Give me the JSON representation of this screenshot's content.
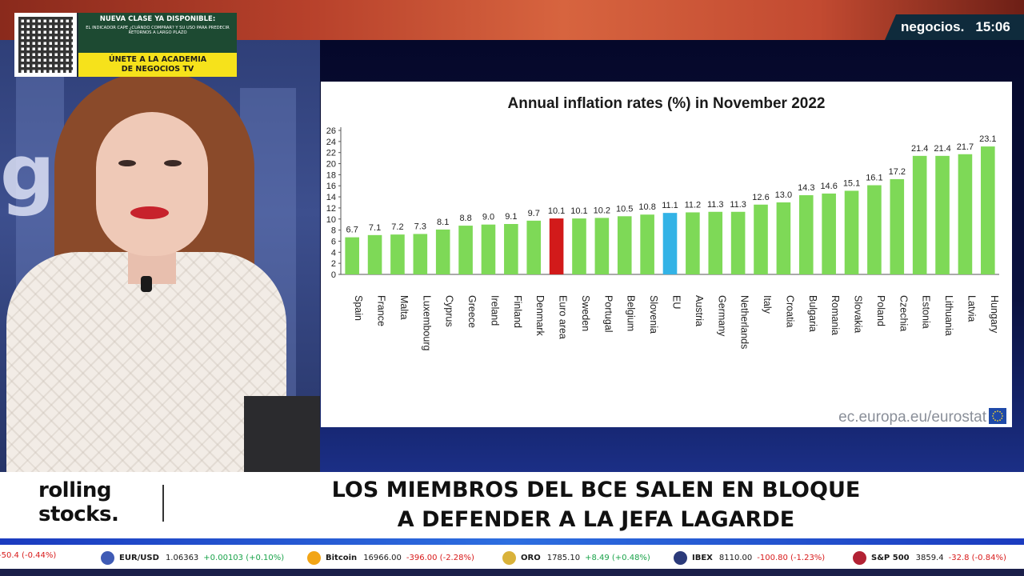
{
  "channel": {
    "logo": "negocios.",
    "time": "15:06"
  },
  "promo": {
    "headline": "NUEVA CLASE YA DISPONIBLE:",
    "subtext": "EL INDICADOR CAPE ¿CUÁNDO COMPRAR? Y SU USO PARA PREDECIR RETORNOS A LARGO PLAZO",
    "cta_line1": "ÚNETE A LA ACADEMIA",
    "cta_line2": "DE NEGOCIOS TV",
    "qr_icon": "qr-code-icon"
  },
  "studio_backdrop_text": "g   ck",
  "chart_data": {
    "type": "bar",
    "title": "Annual inflation rates (%) in November 2022",
    "categories": [
      "Spain",
      "France",
      "Malta",
      "Luxembourg",
      "Cyprus",
      "Greece",
      "Ireland",
      "Finland",
      "Denmark",
      "Euro area",
      "Sweden",
      "Portugal",
      "Belgium",
      "Slovenia",
      "EU",
      "Austria",
      "Germany",
      "Netherlands",
      "Italy",
      "Croatia",
      "Bulgaria",
      "Romania",
      "Slovakia",
      "Poland",
      "Czechia",
      "Estonia",
      "Lithuania",
      "Latvia",
      "Hungary"
    ],
    "values": [
      6.7,
      7.1,
      7.2,
      7.3,
      8.1,
      8.8,
      9.0,
      9.1,
      9.7,
      10.1,
      10.1,
      10.2,
      10.5,
      10.8,
      11.1,
      11.2,
      11.3,
      11.3,
      12.6,
      13.0,
      14.3,
      14.6,
      15.1,
      16.1,
      17.2,
      21.4,
      21.4,
      21.7,
      23.1
    ],
    "value_labels": [
      "6.7",
      "7.1",
      "7.2",
      "7.3",
      "8.1",
      "8.8",
      "9.0",
      "9.1",
      "9.7",
      "10.1",
      "10.1",
      "10.2",
      "10.5",
      "10.8",
      "11.1",
      "11.2",
      "11.3",
      "11.3",
      "12.6",
      "13.0",
      "14.3",
      "14.6",
      "15.1",
      "16.1",
      "17.2",
      "21.4",
      "21.4",
      "21.7",
      "23.1"
    ],
    "ylim": [
      0,
      26
    ],
    "yticks": [
      0,
      2,
      4,
      6,
      8,
      10,
      12,
      14,
      16,
      18,
      20,
      22,
      24,
      26
    ],
    "xlabel": "",
    "ylabel": "",
    "grid": false,
    "colors": {
      "default": "#7ed957",
      "Euro area": "#d21a1a",
      "EU": "#33b3e6"
    },
    "source": "ec.europa.eu/eurostat"
  },
  "lower_third": {
    "brand_line1": "rolling",
    "brand_line2": "stocks.",
    "headline_line1": "LOS MIEMBROS DEL BCE SALEN EN BLOQUE",
    "headline_line2": "A DEFENDER A LA JEFA LAGARDE"
  },
  "ticker": [
    {
      "name": "",
      "value": "",
      "change": "-50.4 (-0.44%)",
      "icon": "",
      "icon_color": "#c81e3a",
      "direction": "down"
    },
    {
      "name": "EUR/USD",
      "value": "1.06363",
      "change": "+0.00103 (+0.10%)",
      "icon": "euro-dollar-icon",
      "icon_color": "#3f5bb5",
      "direction": "up"
    },
    {
      "name": "Bitcoin",
      "value": "16966.00",
      "change": "-396.00 (-2.28%)",
      "icon": "bitcoin-icon",
      "icon_color": "#f2a516",
      "direction": "down"
    },
    {
      "name": "ORO",
      "value": "1785.10",
      "change": "+8.49 (+0.48%)",
      "icon": "gold-icon",
      "icon_color": "#d9b23a",
      "direction": "up"
    },
    {
      "name": "IBEX",
      "value": "8110.00",
      "change": "-100.80 (-1.23%)",
      "icon": "ibex-flag-icon",
      "icon_color": "#2b3a7a",
      "direction": "down"
    },
    {
      "name": "S&P 500",
      "value": "3859.4",
      "change": "-32.8 (-0.84%)",
      "icon": "sp500-flag-icon",
      "icon_color": "#b22234",
      "direction": "down"
    }
  ]
}
